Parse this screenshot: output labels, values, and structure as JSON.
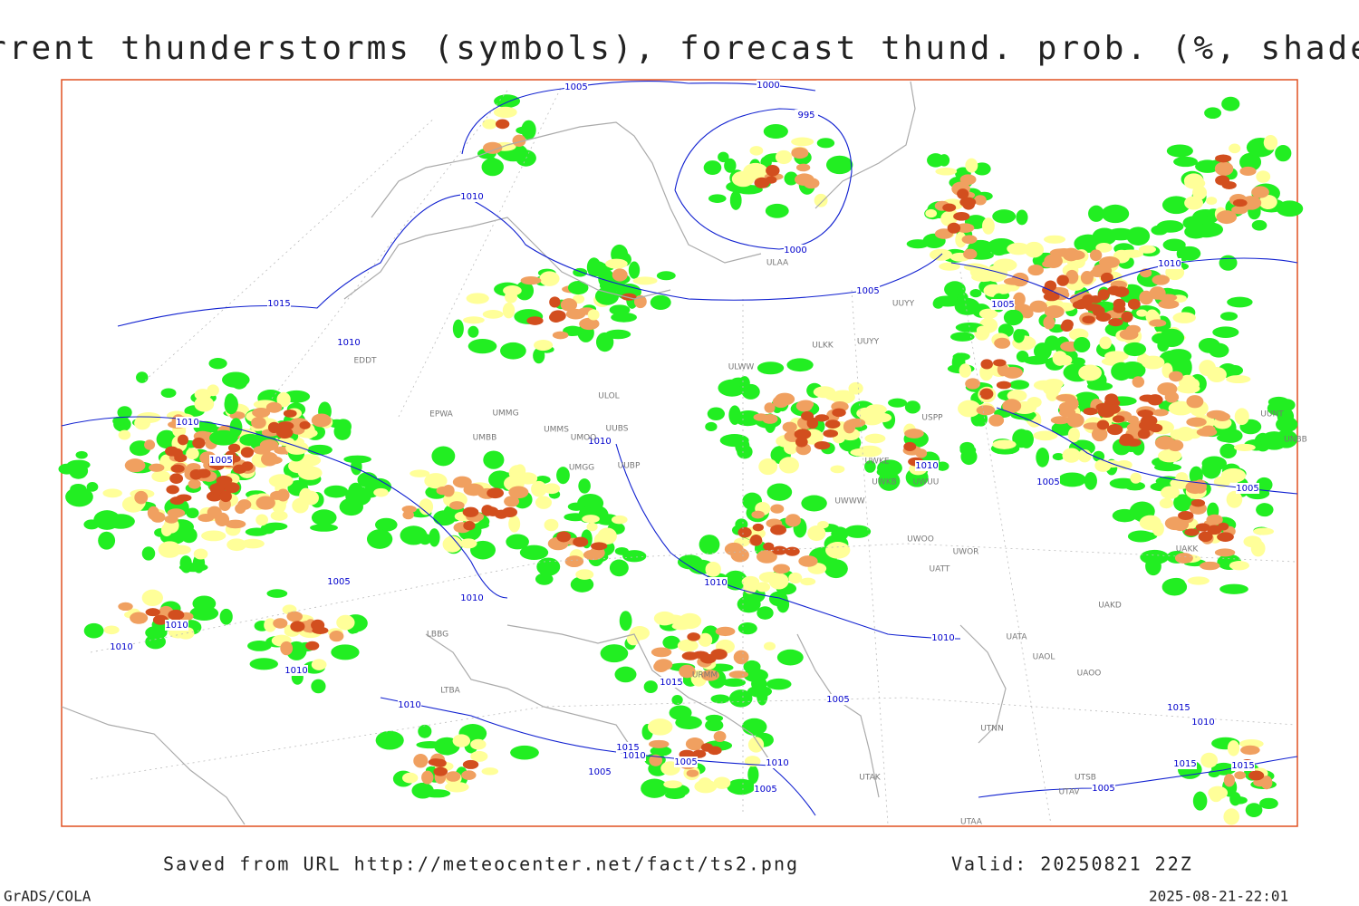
{
  "header": {
    "title": "Current thunderstorms (symbols), forecast thund. prob. (%, shaded)"
  },
  "footer": {
    "source": "Saved from URL http://meteocenter.net/fact/ts2.png",
    "valid": "Valid: 20250821 22Z",
    "software": "GrADS/COLA",
    "timestamp": "2025-08-21-22:01"
  },
  "map": {
    "isobar_labels": [
      1005,
      1000,
      995,
      1010,
      1000,
      1005,
      1015,
      1010,
      1010,
      1005,
      1010,
      1005,
      1010,
      1005,
      1005,
      1010,
      1005,
      1010,
      1010,
      1010,
      1010,
      1010,
      1015,
      1010,
      1010,
      1005,
      1015,
      1010,
      1015,
      1010,
      1005,
      1005,
      1010,
      1005,
      1015,
      1015,
      1005
    ],
    "stations": [
      "ULAA",
      "UUYY",
      "ULKK",
      "UUYY",
      "ULWW",
      "EDDT",
      "EPWA",
      "UMMG",
      "UMBB",
      "UMMS",
      "UMOO",
      "ULOL",
      "UUBS",
      "UUBP",
      "UMGG",
      "USPP",
      "UWKE",
      "UWKB",
      "UWUU",
      "UWWW",
      "UAKK",
      "UAKD",
      "UATA",
      "UAOL",
      "UAOO",
      "UTNN",
      "UTAK",
      "UTAA",
      "UUNT",
      "UNBB",
      "UWOO",
      "UATT",
      "UWOR",
      "URMM",
      "LBBG",
      "LTBA",
      "UTSB",
      "UTAV"
    ]
  }
}
